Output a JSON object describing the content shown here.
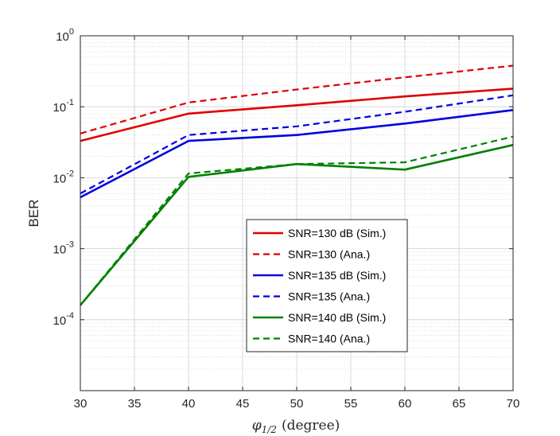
{
  "chart_data": {
    "type": "line",
    "xlabel_symbol": "φ",
    "xlabel_subscript": "1/2",
    "xlabel_unit": "(degree)",
    "ylabel": "BER",
    "yscale": "log",
    "xlim": [
      30,
      70
    ],
    "ylim": [
      1e-05,
      1
    ],
    "x_ticks": [
      30,
      35,
      40,
      45,
      50,
      55,
      60,
      65,
      70
    ],
    "y_ticks": [
      {
        "value": 1,
        "base": "10",
        "exp": "0"
      },
      {
        "value": 0.1,
        "base": "10",
        "exp": "-1"
      },
      {
        "value": 0.01,
        "base": "10",
        "exp": "-2"
      },
      {
        "value": 0.001,
        "base": "10",
        "exp": "-3"
      },
      {
        "value": 0.0001,
        "base": "10",
        "exp": "-4"
      }
    ],
    "grid": true,
    "minor_grid": true,
    "legend_position": "lower-center",
    "x": [
      30,
      40,
      50,
      60,
      70
    ],
    "series": [
      {
        "name": "SNR=130 dB (Sim.)",
        "color": "#e00000",
        "dash": "solid",
        "values": [
          0.033,
          0.08,
          0.105,
          0.14,
          0.18
        ]
      },
      {
        "name": "SNR=130 (Ana.)",
        "color": "#e00000",
        "dash": "dashed",
        "values": [
          0.042,
          0.115,
          0.175,
          0.26,
          0.38
        ]
      },
      {
        "name": "SNR=135 dB (Sim.)",
        "color": "#0000e0",
        "dash": "solid",
        "values": [
          0.0053,
          0.033,
          0.04,
          0.058,
          0.09
        ]
      },
      {
        "name": "SNR=135 (Ana.)",
        "color": "#0000e0",
        "dash": "dashed",
        "values": [
          0.006,
          0.04,
          0.053,
          0.085,
          0.145
        ]
      },
      {
        "name": "SNR=140 dB (Sim.)",
        "color": "#008000",
        "dash": "solid",
        "values": [
          0.00016,
          0.0103,
          0.0156,
          0.013,
          0.029
        ]
      },
      {
        "name": "SNR=140 (Ana.)",
        "color": "#008000",
        "dash": "dashed",
        "values": [
          0.00016,
          0.0115,
          0.0156,
          0.0165,
          0.038
        ]
      }
    ]
  }
}
